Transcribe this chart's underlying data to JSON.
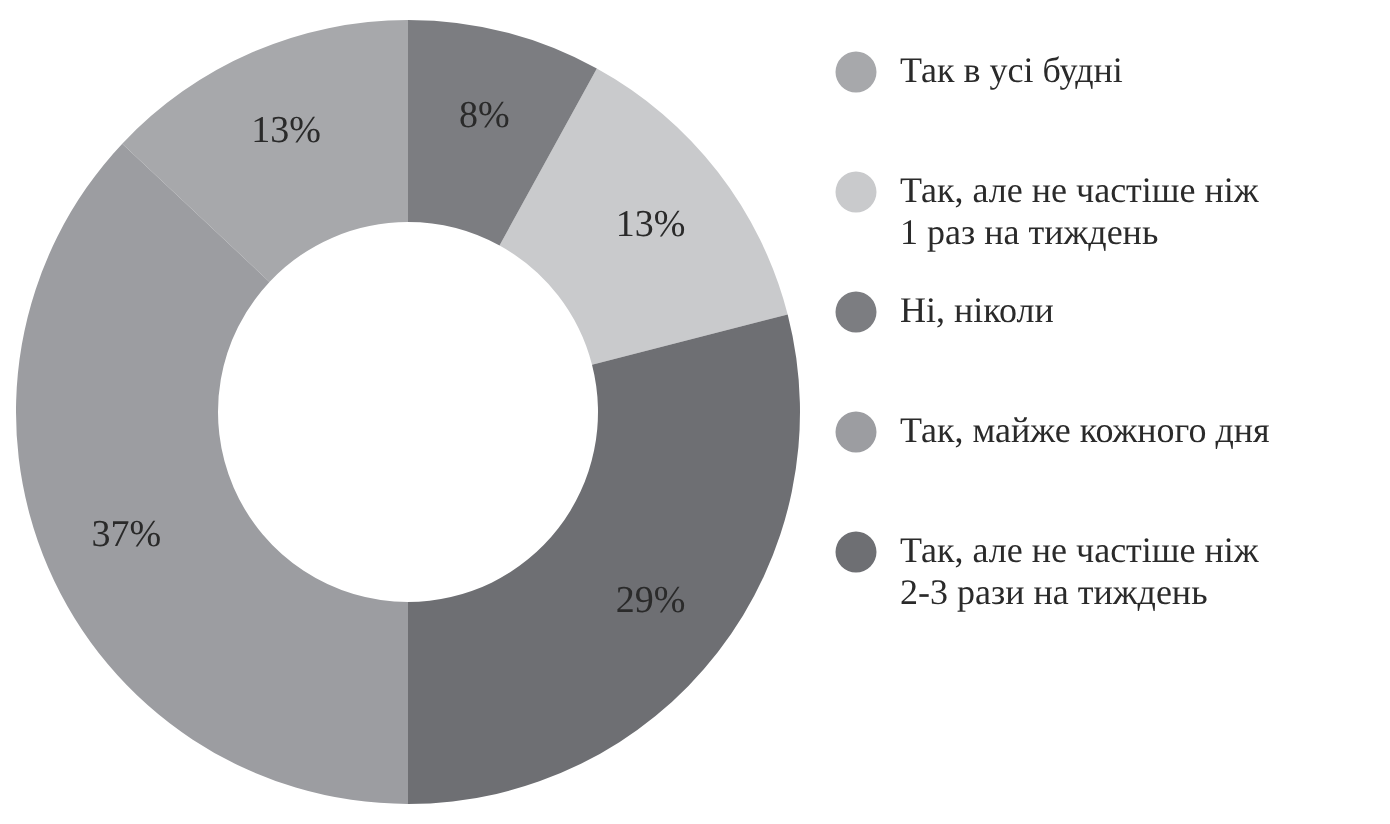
{
  "chart_data": {
    "type": "donut",
    "categories": [
      "Так в усі будні",
      "Так, але не частіше ніж 1 раз на тиждень",
      "Ні, ніколи",
      "Так, майже кожного дня",
      "Так, але не частіше ніж 2-3 рази на тиждень"
    ],
    "values": [
      13,
      13,
      8,
      37,
      29
    ],
    "colors": [
      "#a7a8ab",
      "#c9cacc",
      "#7c7d81",
      "#9c9da1",
      "#6e6f73"
    ],
    "value_labels": [
      "13%",
      "13%",
      "8%",
      "37%",
      "29%"
    ],
    "legend": "right"
  }
}
